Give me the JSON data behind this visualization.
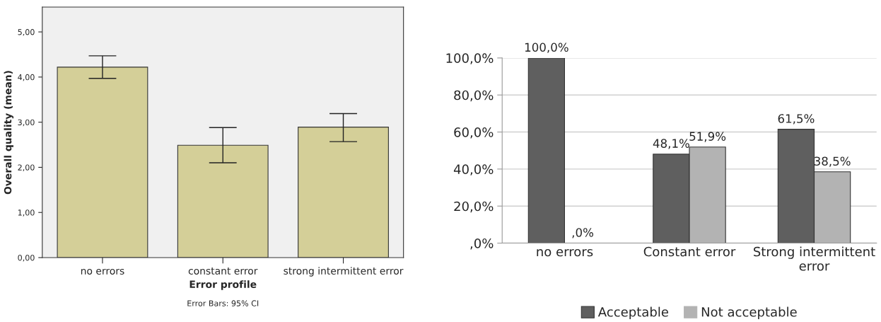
{
  "chart_data": [
    {
      "type": "bar",
      "xlabel": "Error profile",
      "ylabel": "Overall quality (mean)",
      "categories": [
        "no errors",
        "constant error",
        "strong intermittent error"
      ],
      "values": [
        4.22,
        2.49,
        2.89
      ],
      "color": "#d4cf98",
      "errors": [
        [
          3.97,
          4.47
        ],
        [
          2.1,
          2.88
        ],
        [
          2.57,
          3.19
        ]
      ],
      "ylim": [
        0,
        5.55
      ],
      "yticks": [
        {
          "value": 0,
          "label": "0,00"
        },
        {
          "value": 1,
          "label": "1,00"
        },
        {
          "value": 2,
          "label": "2,00"
        },
        {
          "value": 3,
          "label": "3,00"
        },
        {
          "value": 4,
          "label": "4,00"
        },
        {
          "value": 5,
          "label": "5,00"
        }
      ],
      "grid": false,
      "annotations": [
        "Error Bars: 95% CI"
      ]
    },
    {
      "type": "bar",
      "categories": [
        "no errors",
        "Constant error",
        "Strong intermittent error"
      ],
      "series": [
        {
          "name": "Acceptable",
          "color": "#5f5f5f",
          "values": [
            100.0,
            48.1,
            61.5
          ],
          "value_labels": [
            "100,0%",
            "48,1%",
            "61,5%"
          ]
        },
        {
          "name": "Not acceptable",
          "color": "#b3b3b3",
          "values": [
            0.0,
            51.9,
            38.5
          ],
          "value_labels": [
            ",0%",
            "51,9%",
            "38,5%"
          ]
        }
      ],
      "ylim": [
        0,
        100
      ],
      "yticks": [
        {
          "value": 0,
          "label": ",0%"
        },
        {
          "value": 20,
          "label": "20,0%"
        },
        {
          "value": 40,
          "label": "40,0%"
        },
        {
          "value": 60,
          "label": "60,0%"
        },
        {
          "value": 80,
          "label": "80,0%"
        },
        {
          "value": 100,
          "label": "100,0%"
        }
      ],
      "grid": "y",
      "legend": "bottom"
    }
  ]
}
